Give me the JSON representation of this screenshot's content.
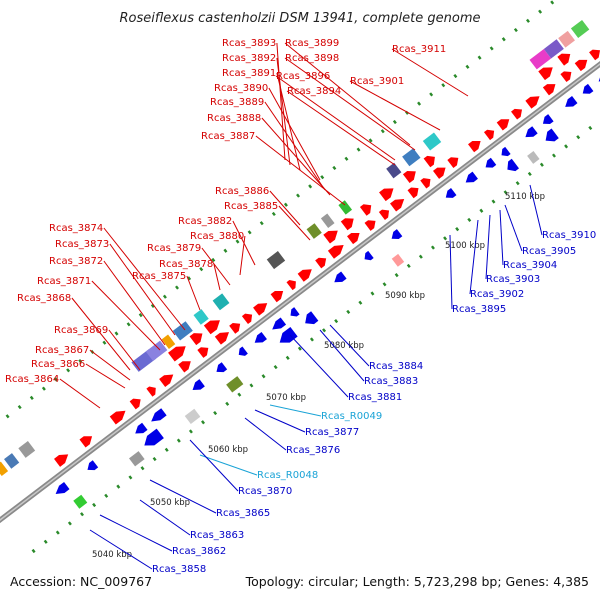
{
  "title": "Roseiflexus castenholzii DSM 13941, complete genome",
  "footer": {
    "accession": "Accession: NC_009767",
    "topology": "Topology: circular; Length: 5,723,298 bp; Genes: 4,385"
  },
  "colors": {
    "forward_gene": "#ff0000",
    "reverse_gene": "#0000e6",
    "forward_label": "#d40000",
    "reverse_label": "#0000c8",
    "rna_label": "#1aa3d6",
    "backbone": "#8a8a8a",
    "tick": "#2a8a2a"
  },
  "scale_labels": [
    "5040 kbp",
    "5050 kbp",
    "5060 kbp",
    "5070 kbp",
    "5080 kbp",
    "5090 kbp",
    "5100 kbp",
    "5110 kbp"
  ],
  "forward_labels": [
    "Rcas_3893",
    "Rcas_3899",
    "Rcas_3892",
    "Rcas_3898",
    "Rcas_3911",
    "Rcas_3891",
    "Rcas_3896",
    "Rcas_3901",
    "Rcas_3890",
    "Rcas_3894",
    "Rcas_3889",
    "Rcas_3888",
    "Rcas_3887",
    "Rcas_3886",
    "Rcas_3885",
    "Rcas_3882",
    "Rcas_3874",
    "Rcas_3880",
    "Rcas_3873",
    "Rcas_3879",
    "Rcas_3872",
    "Rcas_3878",
    "Rcas_3875",
    "Rcas_3871",
    "Rcas_3868",
    "Rcas_3869",
    "Rcas_3867",
    "Rcas_3866",
    "Rcas_3864"
  ],
  "reverse_labels": [
    "Rcas_3910",
    "Rcas_3905",
    "Rcas_3904",
    "Rcas_3903",
    "Rcas_3902",
    "Rcas_3895",
    "Rcas_3884",
    "Rcas_3883",
    "Rcas_3881",
    "Rcas_R0049",
    "Rcas_3877",
    "Rcas_3876",
    "Rcas_R0048",
    "Rcas_3870",
    "Rcas_3865",
    "Rcas_3863",
    "Rcas_3862",
    "Rcas_3858"
  ]
}
